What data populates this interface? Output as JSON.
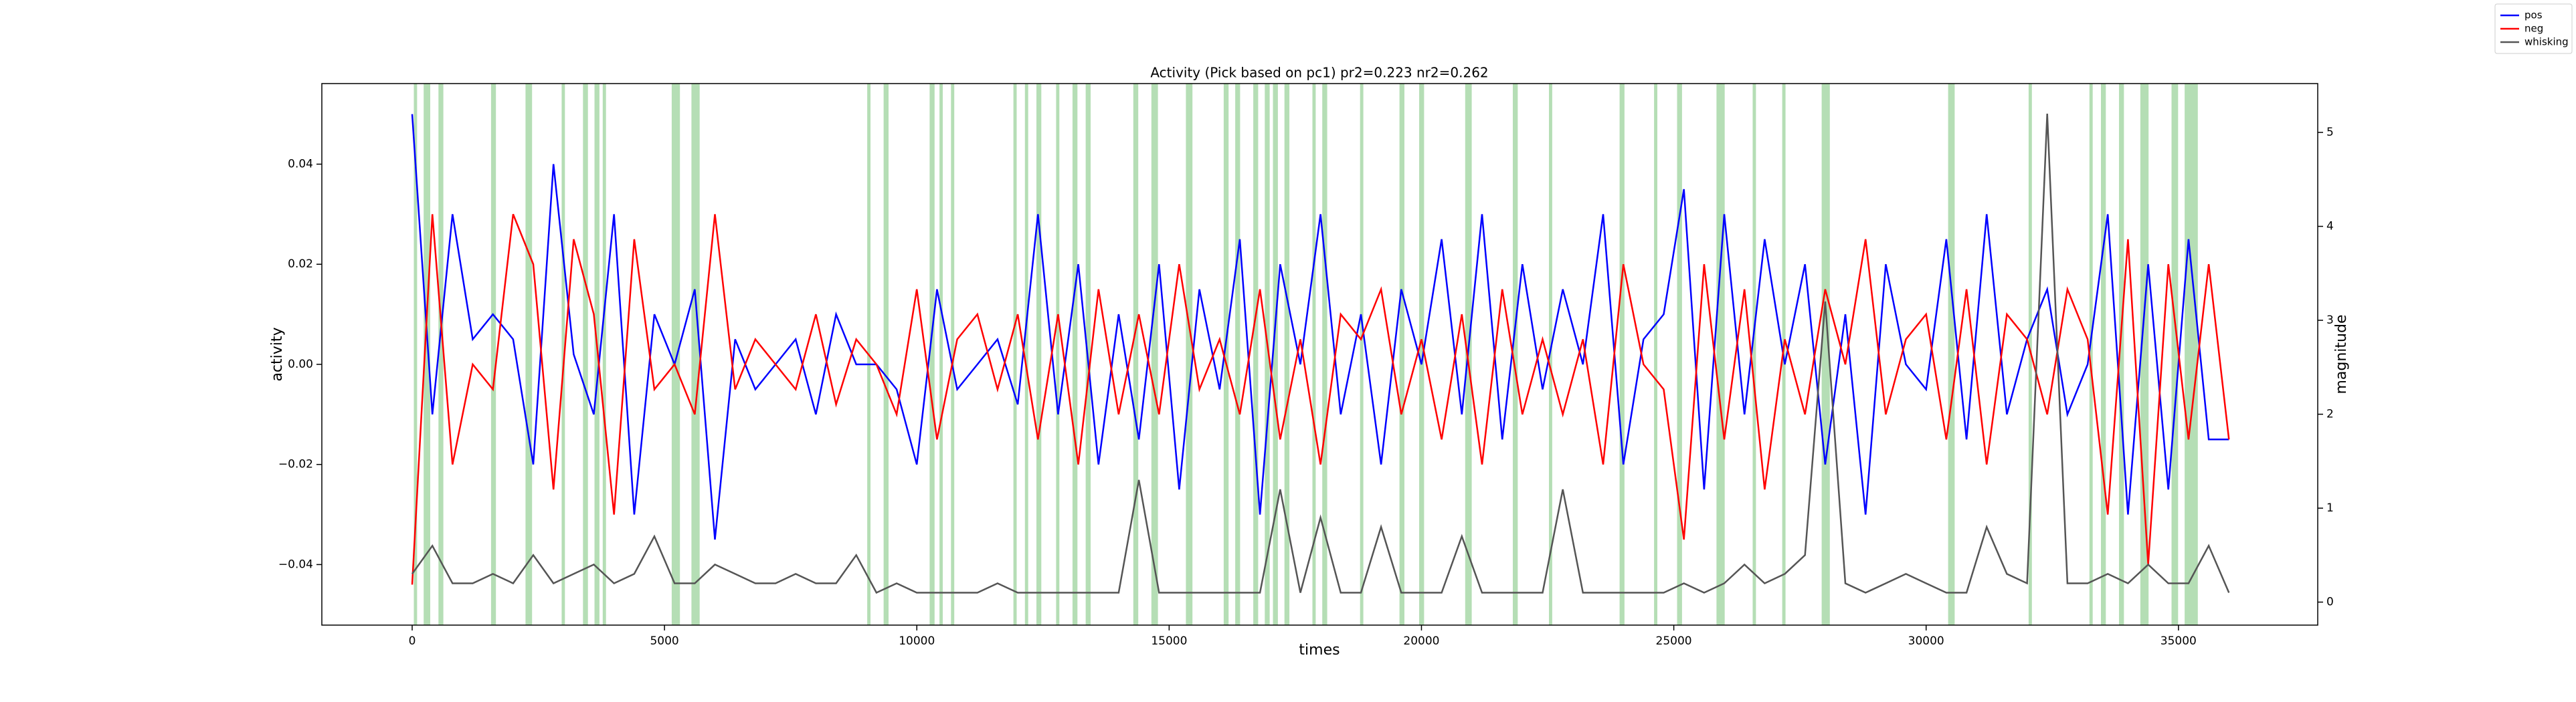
{
  "chart_data": {
    "type": "line",
    "title": "Activity (Pick based on pc1) pr2=0.223 nr2=0.262",
    "x_label": "times",
    "y_label": "activity",
    "y2_label": "magnitude",
    "x": [
      0,
      400,
      800,
      1200,
      1600,
      2000,
      2400,
      2800,
      3200,
      3600,
      4000,
      4400,
      4800,
      5200,
      5600,
      6000,
      6400,
      6800,
      7200,
      7600,
      8000,
      8400,
      8800,
      9200,
      9600,
      10000,
      10400,
      10800,
      11200,
      11600,
      12000,
      12400,
      12800,
      13200,
      13600,
      14000,
      14400,
      14800,
      15200,
      15600,
      16000,
      16400,
      16800,
      17200,
      17600,
      18000,
      18400,
      18800,
      19200,
      19600,
      20000,
      20400,
      20800,
      21200,
      21600,
      22000,
      22400,
      22800,
      23200,
      23600,
      24000,
      24400,
      24800,
      25200,
      25600,
      26000,
      26400,
      26800,
      27200,
      27600,
      28000,
      28400,
      28800,
      29200,
      29600,
      30000,
      30400,
      30800,
      31200,
      31600,
      32000,
      32400,
      32800,
      33200,
      33600,
      34000,
      34400,
      34800,
      35200,
      35600,
      36000
    ],
    "series": [
      {
        "name": "pos",
        "color": "#0000ff",
        "values": [
          0.05,
          -0.01,
          0.03,
          0.005,
          0.01,
          0.005,
          -0.02,
          0.04,
          0.002,
          -0.01,
          0.03,
          -0.03,
          0.01,
          0.0,
          0.015,
          -0.035,
          0.005,
          -0.005,
          0.0,
          0.005,
          -0.01,
          0.01,
          0.0,
          0.0,
          -0.005,
          -0.02,
          0.015,
          -0.005,
          0.0,
          0.005,
          -0.008,
          0.03,
          -0.01,
          0.02,
          -0.02,
          0.01,
          -0.015,
          0.02,
          -0.025,
          0.015,
          -0.005,
          0.025,
          -0.03,
          0.02,
          0.0,
          0.03,
          -0.01,
          0.01,
          -0.02,
          0.015,
          0.0,
          0.025,
          -0.01,
          0.03,
          -0.015,
          0.02,
          -0.005,
          0.015,
          0.0,
          0.03,
          -0.02,
          0.005,
          0.01,
          0.035,
          -0.025,
          0.03,
          -0.01,
          0.025,
          0.0,
          0.02,
          -0.02,
          0.01,
          -0.03,
          0.02,
          0.0,
          -0.005,
          0.025,
          -0.015,
          0.03,
          -0.01,
          0.005,
          0.015,
          -0.01,
          0.0,
          0.03,
          -0.03,
          0.02,
          -0.025,
          0.025,
          -0.015,
          -0.015
        ]
      },
      {
        "name": "neg",
        "color": "#ff0000",
        "values": [
          -0.044,
          0.03,
          -0.02,
          0.0,
          -0.005,
          0.03,
          0.02,
          -0.025,
          0.025,
          0.01,
          -0.03,
          0.025,
          -0.005,
          0.0,
          -0.01,
          0.03,
          -0.005,
          0.005,
          0.0,
          -0.005,
          0.01,
          -0.008,
          0.005,
          0.0,
          -0.01,
          0.015,
          -0.015,
          0.005,
          0.01,
          -0.005,
          0.01,
          -0.015,
          0.01,
          -0.02,
          0.015,
          -0.01,
          0.01,
          -0.01,
          0.02,
          -0.005,
          0.005,
          -0.01,
          0.015,
          -0.015,
          0.005,
          -0.02,
          0.01,
          0.005,
          0.015,
          -0.01,
          0.005,
          -0.015,
          0.01,
          -0.02,
          0.015,
          -0.01,
          0.005,
          -0.01,
          0.005,
          -0.02,
          0.02,
          0.0,
          -0.005,
          -0.035,
          0.02,
          -0.015,
          0.015,
          -0.025,
          0.005,
          -0.01,
          0.015,
          0.0,
          0.025,
          -0.01,
          0.005,
          0.01,
          -0.015,
          0.015,
          -0.02,
          0.01,
          0.005,
          -0.01,
          0.015,
          0.005,
          -0.03,
          0.025,
          -0.04,
          0.02,
          -0.015,
          0.02,
          -0.015
        ]
      },
      {
        "name": "whisking",
        "color": "#555555",
        "axis": "y2",
        "values": [
          0.3,
          0.6,
          0.2,
          0.2,
          0.3,
          0.2,
          0.5,
          0.2,
          0.3,
          0.4,
          0.2,
          0.3,
          0.7,
          0.2,
          0.2,
          0.4,
          0.3,
          0.2,
          0.2,
          0.3,
          0.2,
          0.2,
          0.5,
          0.1,
          0.2,
          0.1,
          0.1,
          0.1,
          0.1,
          0.2,
          0.1,
          0.1,
          0.1,
          0.1,
          0.1,
          0.1,
          1.3,
          0.1,
          0.1,
          0.1,
          0.1,
          0.1,
          0.1,
          1.2,
          0.1,
          0.9,
          0.1,
          0.1,
          0.8,
          0.1,
          0.1,
          0.1,
          0.7,
          0.1,
          0.1,
          0.1,
          0.1,
          1.2,
          0.1,
          0.1,
          0.1,
          0.1,
          0.1,
          0.2,
          0.1,
          0.2,
          0.4,
          0.2,
          0.3,
          0.5,
          3.2,
          0.2,
          0.1,
          0.2,
          0.3,
          0.2,
          0.1,
          0.1,
          0.8,
          0.3,
          0.2,
          5.2,
          0.2,
          0.2,
          0.3,
          0.2,
          0.4,
          0.2,
          0.2,
          0.6,
          0.1
        ]
      }
    ],
    "span_color": "#2ca02c",
    "spans": [
      [
        33,
        98
      ],
      [
        228,
        358
      ],
      [
        521,
        618
      ],
      [
        1563,
        1660
      ],
      [
        2246,
        2376
      ],
      [
        2962,
        3027
      ],
      [
        3385,
        3483
      ],
      [
        3613,
        3711
      ],
      [
        3776,
        3841
      ],
      [
        5143,
        5306
      ],
      [
        5534,
        5697
      ],
      [
        9017,
        9082
      ],
      [
        9342,
        9440
      ],
      [
        10254,
        10352
      ],
      [
        10449,
        10514
      ],
      [
        10677,
        10742
      ],
      [
        11914,
        11979
      ],
      [
        12142,
        12207
      ],
      [
        12370,
        12467
      ],
      [
        12760,
        12825
      ],
      [
        13085,
        13183
      ],
      [
        13346,
        13444
      ],
      [
        14290,
        14388
      ],
      [
        14648,
        14778
      ],
      [
        15332,
        15462
      ],
      [
        16081,
        16178
      ],
      [
        16309,
        16406
      ],
      [
        16667,
        16764
      ],
      [
        16895,
        16992
      ],
      [
        17057,
        17155
      ],
      [
        17285,
        17383
      ],
      [
        17839,
        17904
      ],
      [
        18034,
        18132
      ],
      [
        18783,
        18848
      ],
      [
        19564,
        19662
      ],
      [
        19954,
        20052
      ],
      [
        20866,
        20996
      ],
      [
        21810,
        21908
      ],
      [
        22526,
        22591
      ],
      [
        23926,
        24023
      ],
      [
        24609,
        24674
      ],
      [
        25065,
        25163
      ],
      [
        25846,
        26009
      ],
      [
        26563,
        26628
      ],
      [
        27148,
        27214
      ],
      [
        27930,
        28092
      ],
      [
        30436,
        30566
      ],
      [
        32031,
        32096
      ],
      [
        33236,
        33301
      ],
      [
        33464,
        33561
      ],
      [
        33822,
        33920
      ],
      [
        34245,
        34408
      ],
      [
        34863,
        34993
      ],
      [
        35123,
        35384
      ]
    ],
    "xlim": [
      -1790,
      37760
    ],
    "xticks": [
      0,
      5000,
      10000,
      15000,
      20000,
      25000,
      30000,
      35000
    ],
    "ylim": [
      -0.0521,
      0.0561
    ],
    "yticks": [
      {
        "value": -0.04,
        "label": "−0.04"
      },
      {
        "value": -0.02,
        "label": "−0.02"
      },
      {
        "value": 0,
        "label": "0.00"
      },
      0.02,
      0.04
    ],
    "y2lim": [
      -0.245,
      5.52
    ],
    "y2ticks": [
      0,
      1,
      2,
      3,
      4,
      5
    ],
    "legend_loc": "upper right"
  }
}
